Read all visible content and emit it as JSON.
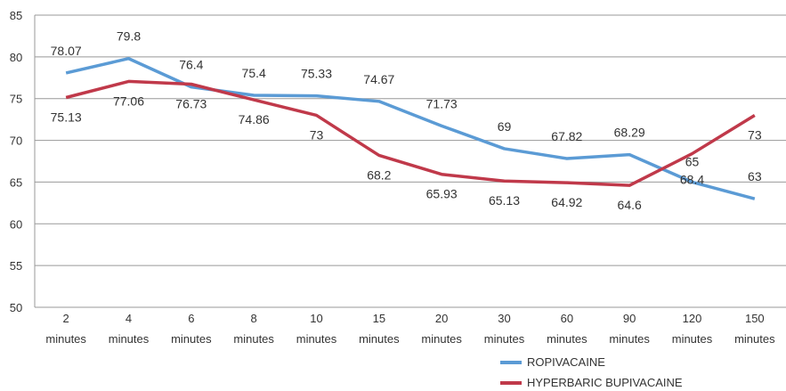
{
  "chart_data": {
    "type": "line",
    "title": "",
    "xlabel": "",
    "ylabel": "",
    "ylim": [
      50,
      85
    ],
    "yticks": [
      "50",
      "55",
      "60",
      "65",
      "70",
      "75",
      "80",
      "85"
    ],
    "grid": true,
    "legend_position": "bottom-right",
    "categories": [
      [
        "2",
        "minutes"
      ],
      [
        "4",
        "minutes"
      ],
      [
        "6",
        "minutes"
      ],
      [
        "8",
        "minutes"
      ],
      [
        "10",
        "minutes"
      ],
      [
        "15",
        "minutes"
      ],
      [
        "20",
        "minutes"
      ],
      [
        "30",
        "minutes"
      ],
      [
        "60",
        "minutes"
      ],
      [
        "90",
        "minutes"
      ],
      [
        "120",
        "minutes"
      ],
      [
        "150",
        "minutes"
      ]
    ],
    "series": [
      {
        "name": "ROPIVACAINE",
        "color": "#5b9bd5",
        "values": [
          78.07,
          79.8,
          76.4,
          75.4,
          75.33,
          74.67,
          71.73,
          69,
          67.82,
          68.29,
          65,
          63
        ],
        "labels": [
          "78.07",
          "79.8",
          "76.4",
          "75.4",
          "75.33",
          "74.67",
          "71.73",
          "69",
          "67.82",
          "68.29",
          "65",
          "63"
        ]
      },
      {
        "name": "HYPERBARIC BUPIVACAINE",
        "color": "#c0394a",
        "values": [
          75.13,
          77.06,
          76.73,
          74.86,
          73,
          68.2,
          65.93,
          65.13,
          64.92,
          64.6,
          68.4,
          73
        ],
        "labels": [
          "75.13",
          "77.06",
          "76.73",
          "74.86",
          "73",
          "68.2",
          "65.93",
          "65.13",
          "64.92",
          "64.6",
          "68.4",
          "73"
        ]
      }
    ]
  }
}
